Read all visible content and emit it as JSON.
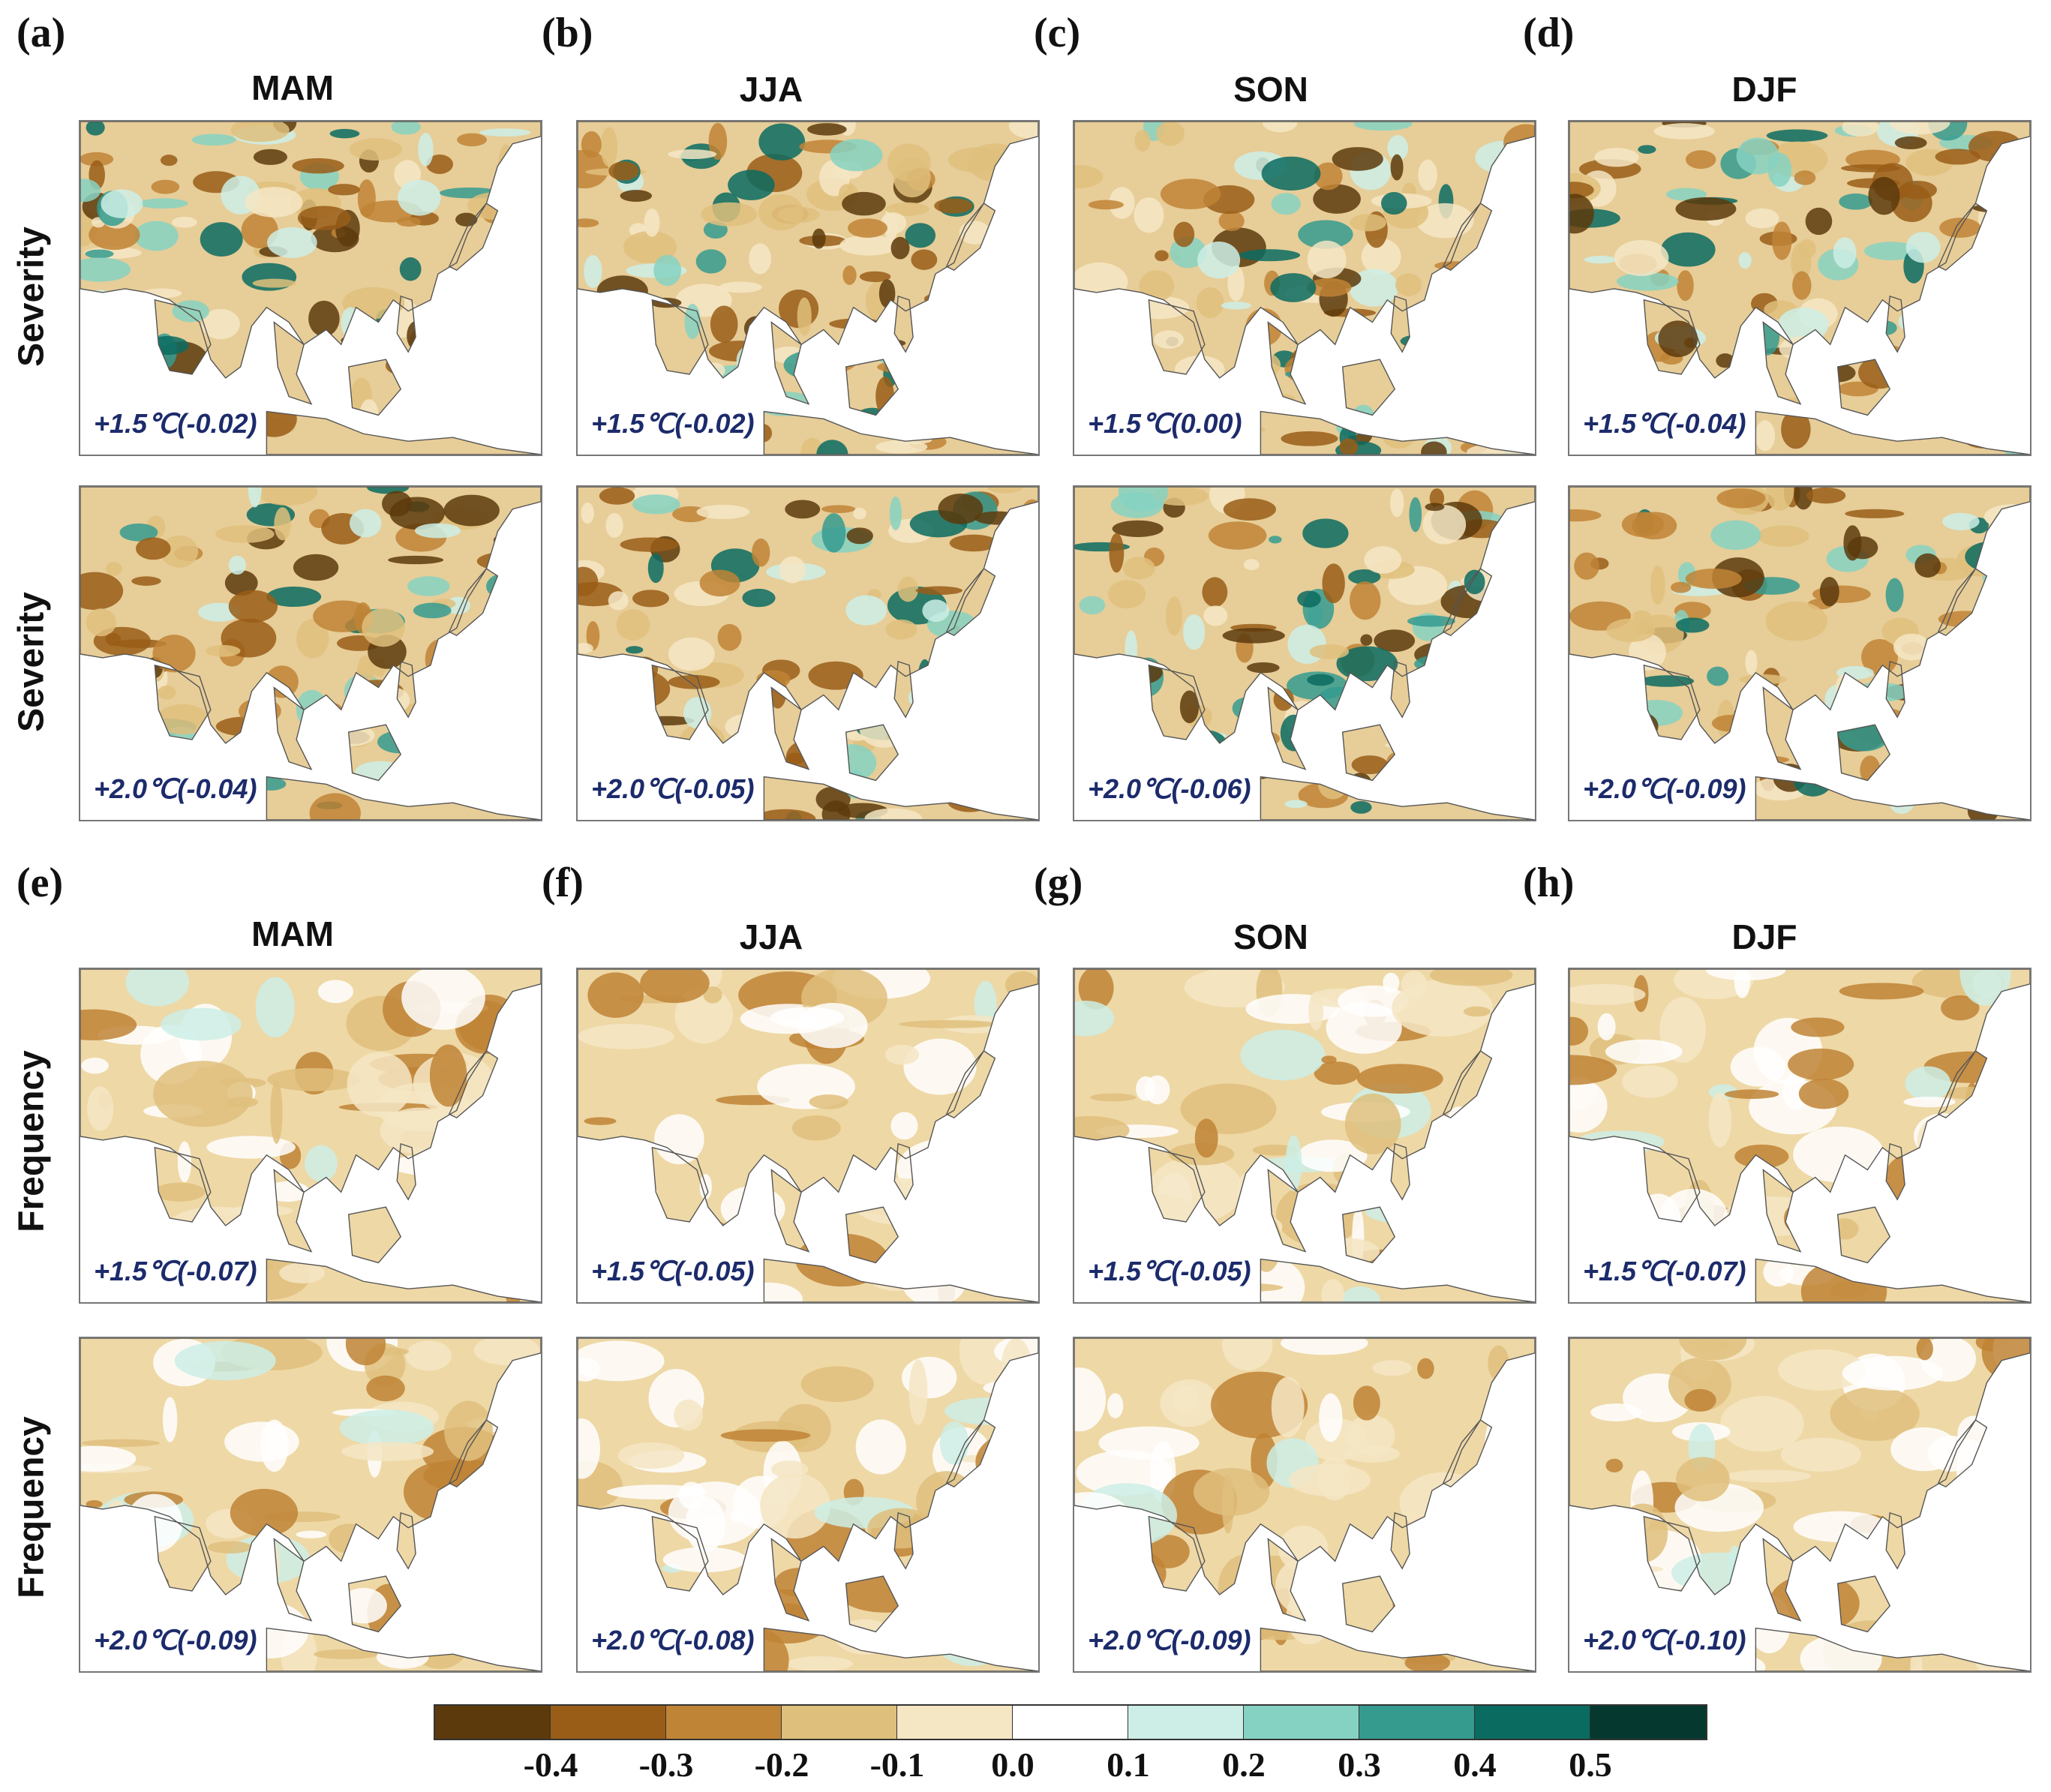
{
  "panel_letters": [
    "(a)",
    "(b)",
    "(c)",
    "(d)",
    "(e)",
    "(f)",
    "(g)",
    "(h)"
  ],
  "seasons": [
    "MAM",
    "JJA",
    "SON",
    "DJF"
  ],
  "row_labels": {
    "severity": "Severity",
    "frequency": "Frequency"
  },
  "captions": {
    "severity_15": [
      "+1.5℃(-0.02)",
      "+1.5℃(-0.02)",
      "+1.5℃(0.00)",
      "+1.5℃(-0.04)"
    ],
    "severity_20": [
      "+2.0℃(-0.04)",
      "+2.0℃(-0.05)",
      "+2.0℃(-0.06)",
      "+2.0℃(-0.09)"
    ],
    "frequency_15": [
      "+1.5℃(-0.07)",
      "+1.5℃(-0.05)",
      "+1.5℃(-0.05)",
      "+1.5℃(-0.07)"
    ],
    "frequency_20": [
      "+2.0℃(-0.09)",
      "+2.0℃(-0.08)",
      "+2.0℃(-0.09)",
      "+2.0℃(-0.10)"
    ]
  },
  "colorbar": {
    "colors": [
      "#5c3a0c",
      "#995d18",
      "#c08436",
      "#dfbf7c",
      "#f5e6c4",
      "#ffffff",
      "#cdeee6",
      "#86d2c2",
      "#359b8f",
      "#0a6b60",
      "#05392f"
    ],
    "ticks": [
      "-0.4",
      "-0.3",
      "-0.2",
      "-0.1",
      "0.0",
      "0.1",
      "0.2",
      "0.3",
      "0.4",
      "0.5"
    ]
  }
}
